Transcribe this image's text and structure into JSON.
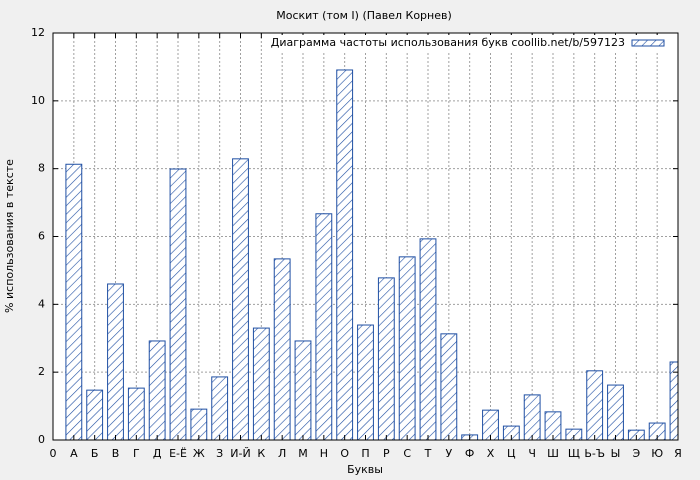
{
  "chart_data": {
    "type": "bar",
    "title": "Москит (том I) (Павел Корнев)",
    "x_label": "Буквы",
    "y_label": "% использования в тексте",
    "x": [
      1,
      2,
      3,
      4,
      5,
      6,
      7,
      8,
      9,
      10,
      11,
      12,
      13,
      14,
      15,
      16,
      17,
      18,
      19,
      20,
      21,
      22,
      23,
      24,
      25,
      26,
      27,
      28,
      29,
      30
    ],
    "series": [
      {
        "name": "Диаграмма частоты использования букв coollib.net/b/597123",
        "color": "#1f4fa3",
        "values": [
          8.13,
          1.47,
          4.6,
          1.53,
          2.92,
          7.99,
          0.91,
          1.86,
          8.29,
          3.3,
          5.34,
          2.92,
          6.67,
          10.91,
          3.39,
          4.78,
          5.4,
          5.93,
          3.13,
          0.15,
          0.88,
          0.41,
          1.33,
          0.83,
          0.32,
          2.04,
          1.62,
          0.29,
          0.5,
          2.3
        ]
      }
    ],
    "xlim": [
      0,
      30
    ],
    "ylim": [
      0,
      12
    ],
    "xticks": [
      0,
      {
        "value": 1,
        "label": "А"
      },
      {
        "value": 2,
        "label": "Б"
      },
      {
        "value": 3,
        "label": "В"
      },
      {
        "value": 4,
        "label": "Г"
      },
      {
        "value": 5,
        "label": "Д"
      },
      {
        "value": 6,
        "label": "Е-Ё"
      },
      {
        "value": 7,
        "label": "Ж"
      },
      {
        "value": 8,
        "label": "З"
      },
      {
        "value": 9,
        "label": "И-Й"
      },
      {
        "value": 10,
        "label": "К"
      },
      {
        "value": 11,
        "label": "Л"
      },
      {
        "value": 12,
        "label": "М"
      },
      {
        "value": 13,
        "label": "Н"
      },
      {
        "value": 14,
        "label": "О"
      },
      {
        "value": 15,
        "label": "П"
      },
      {
        "value": 16,
        "label": "Р"
      },
      {
        "value": 17,
        "label": "С"
      },
      {
        "value": 18,
        "label": "Т"
      },
      {
        "value": 19,
        "label": "У"
      },
      {
        "value": 20,
        "label": "Ф"
      },
      {
        "value": 21,
        "label": "Х"
      },
      {
        "value": 22,
        "label": "Ц"
      },
      {
        "value": 23,
        "label": "Ч"
      },
      {
        "value": 24,
        "label": "Ш"
      },
      {
        "value": 25,
        "label": "Щ"
      },
      {
        "value": 26,
        "label": "Ь-Ъ"
      },
      {
        "value": 27,
        "label": "Ы"
      },
      {
        "value": 28,
        "label": "Э"
      },
      {
        "value": 29,
        "label": "Ю"
      },
      {
        "value": 30,
        "label": "Я"
      }
    ],
    "yticks": [
      0,
      2,
      4,
      6,
      8,
      10,
      12
    ],
    "grid": true,
    "legend": "top-right"
  }
}
